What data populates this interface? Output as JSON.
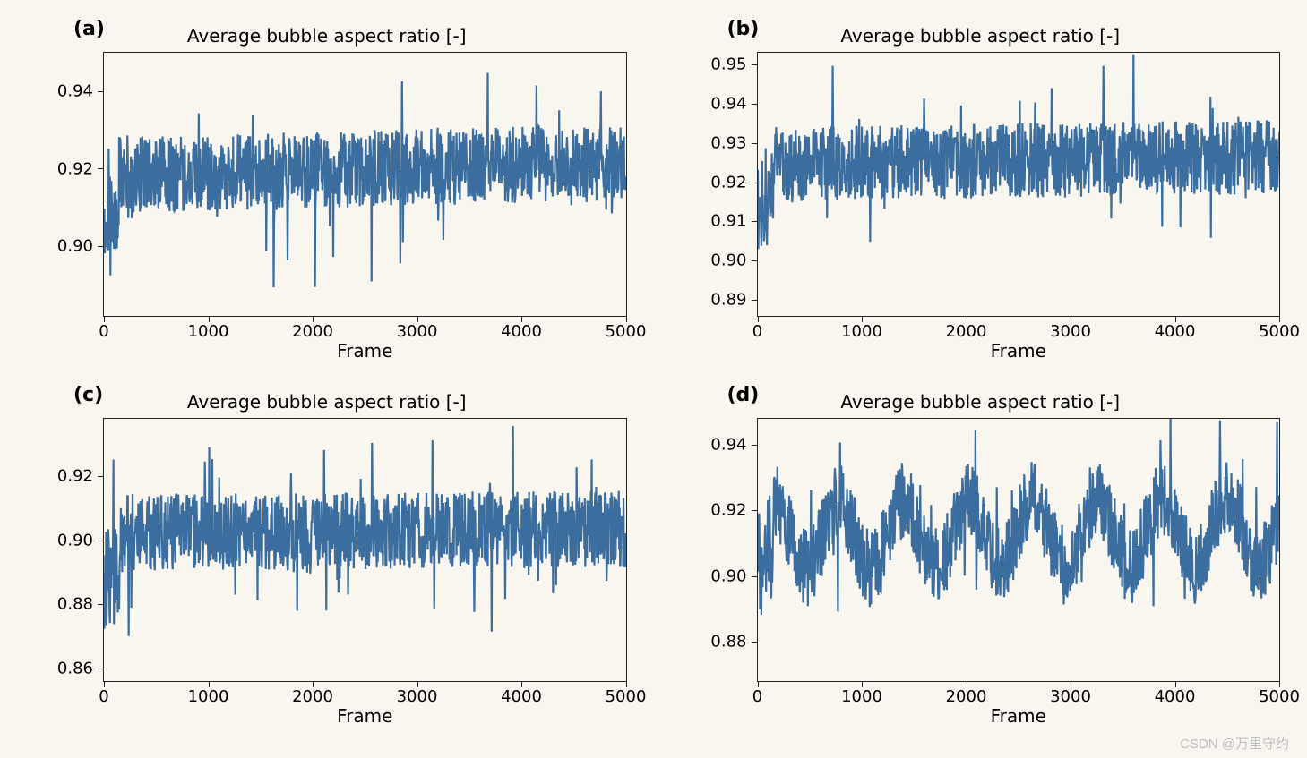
{
  "background_color": "#f9f6ef",
  "line_color": "#3b6e9f",
  "axis_color": "#222222",
  "font_family": "DejaVu Sans",
  "watermark": "CSDN @万里守约",
  "panels": [
    {
      "key": "a",
      "label": "(a)",
      "title": "Average bubble aspect ratio [-]",
      "xlabel": "Frame",
      "xlim": [
        0,
        5000
      ],
      "ylim": [
        0.882,
        0.95
      ],
      "xticks": [
        0,
        1000,
        2000,
        3000,
        4000,
        5000
      ],
      "yticks": [
        0.9,
        0.92,
        0.94
      ],
      "ytick_labels": [
        "0.90",
        "0.92",
        "0.94"
      ],
      "series": {
        "mean": 0.92,
        "amp_low": 0.01,
        "amp_high": 0.01,
        "spike": 0.022,
        "seed": 11,
        "drift": 0.003
      }
    },
    {
      "key": "b",
      "label": "(b)",
      "title": "Average bubble aspect ratio [-]",
      "xlabel": "Frame",
      "xlim": [
        0,
        5000
      ],
      "ylim": [
        0.886,
        0.953
      ],
      "xticks": [
        0,
        1000,
        2000,
        3000,
        4000,
        5000
      ],
      "yticks": [
        0.89,
        0.9,
        0.91,
        0.92,
        0.93,
        0.94,
        0.95
      ],
      "ytick_labels": [
        "0.89",
        "0.90",
        "0.91",
        "0.92",
        "0.93",
        "0.94",
        "0.95"
      ],
      "series": {
        "mean": 0.926,
        "amp_low": 0.01,
        "amp_high": 0.009,
        "spike": 0.02,
        "seed": 22,
        "drift": 0.002
      }
    },
    {
      "key": "c",
      "label": "(c)",
      "title": "Average bubble aspect ratio [-]",
      "xlabel": "Frame",
      "xlim": [
        0,
        5000
      ],
      "ylim": [
        0.856,
        0.938
      ],
      "xticks": [
        0,
        1000,
        2000,
        3000,
        4000,
        5000
      ],
      "yticks": [
        0.86,
        0.88,
        0.9,
        0.92
      ],
      "ytick_labels": [
        "0.86",
        "0.88",
        "0.90",
        "0.92"
      ],
      "series": {
        "mean": 0.903,
        "amp_low": 0.012,
        "amp_high": 0.012,
        "spike": 0.025,
        "seed": 33,
        "drift": 0.001
      }
    },
    {
      "key": "d",
      "label": "(d)",
      "title": "Average bubble aspect ratio [-]",
      "xlabel": "Frame",
      "xlim": [
        0,
        5000
      ],
      "ylim": [
        0.868,
        0.948
      ],
      "xticks": [
        0,
        1000,
        2000,
        3000,
        4000,
        5000
      ],
      "yticks": [
        0.88,
        0.9,
        0.92,
        0.94
      ],
      "ytick_labels": [
        "0.88",
        "0.90",
        "0.92",
        "0.94"
      ],
      "series": {
        "mean": 0.913,
        "amp_low": 0.012,
        "amp_high": 0.012,
        "spike": 0.022,
        "seed": 44,
        "drift": 0.002,
        "wave_amp": 0.01,
        "wave_period": 620
      }
    }
  ],
  "n_points": 1200,
  "line_width": 1.0,
  "title_fontsize": 20,
  "label_fontsize": 22,
  "tick_fontsize": 18,
  "xlabel_fontsize": 20
}
